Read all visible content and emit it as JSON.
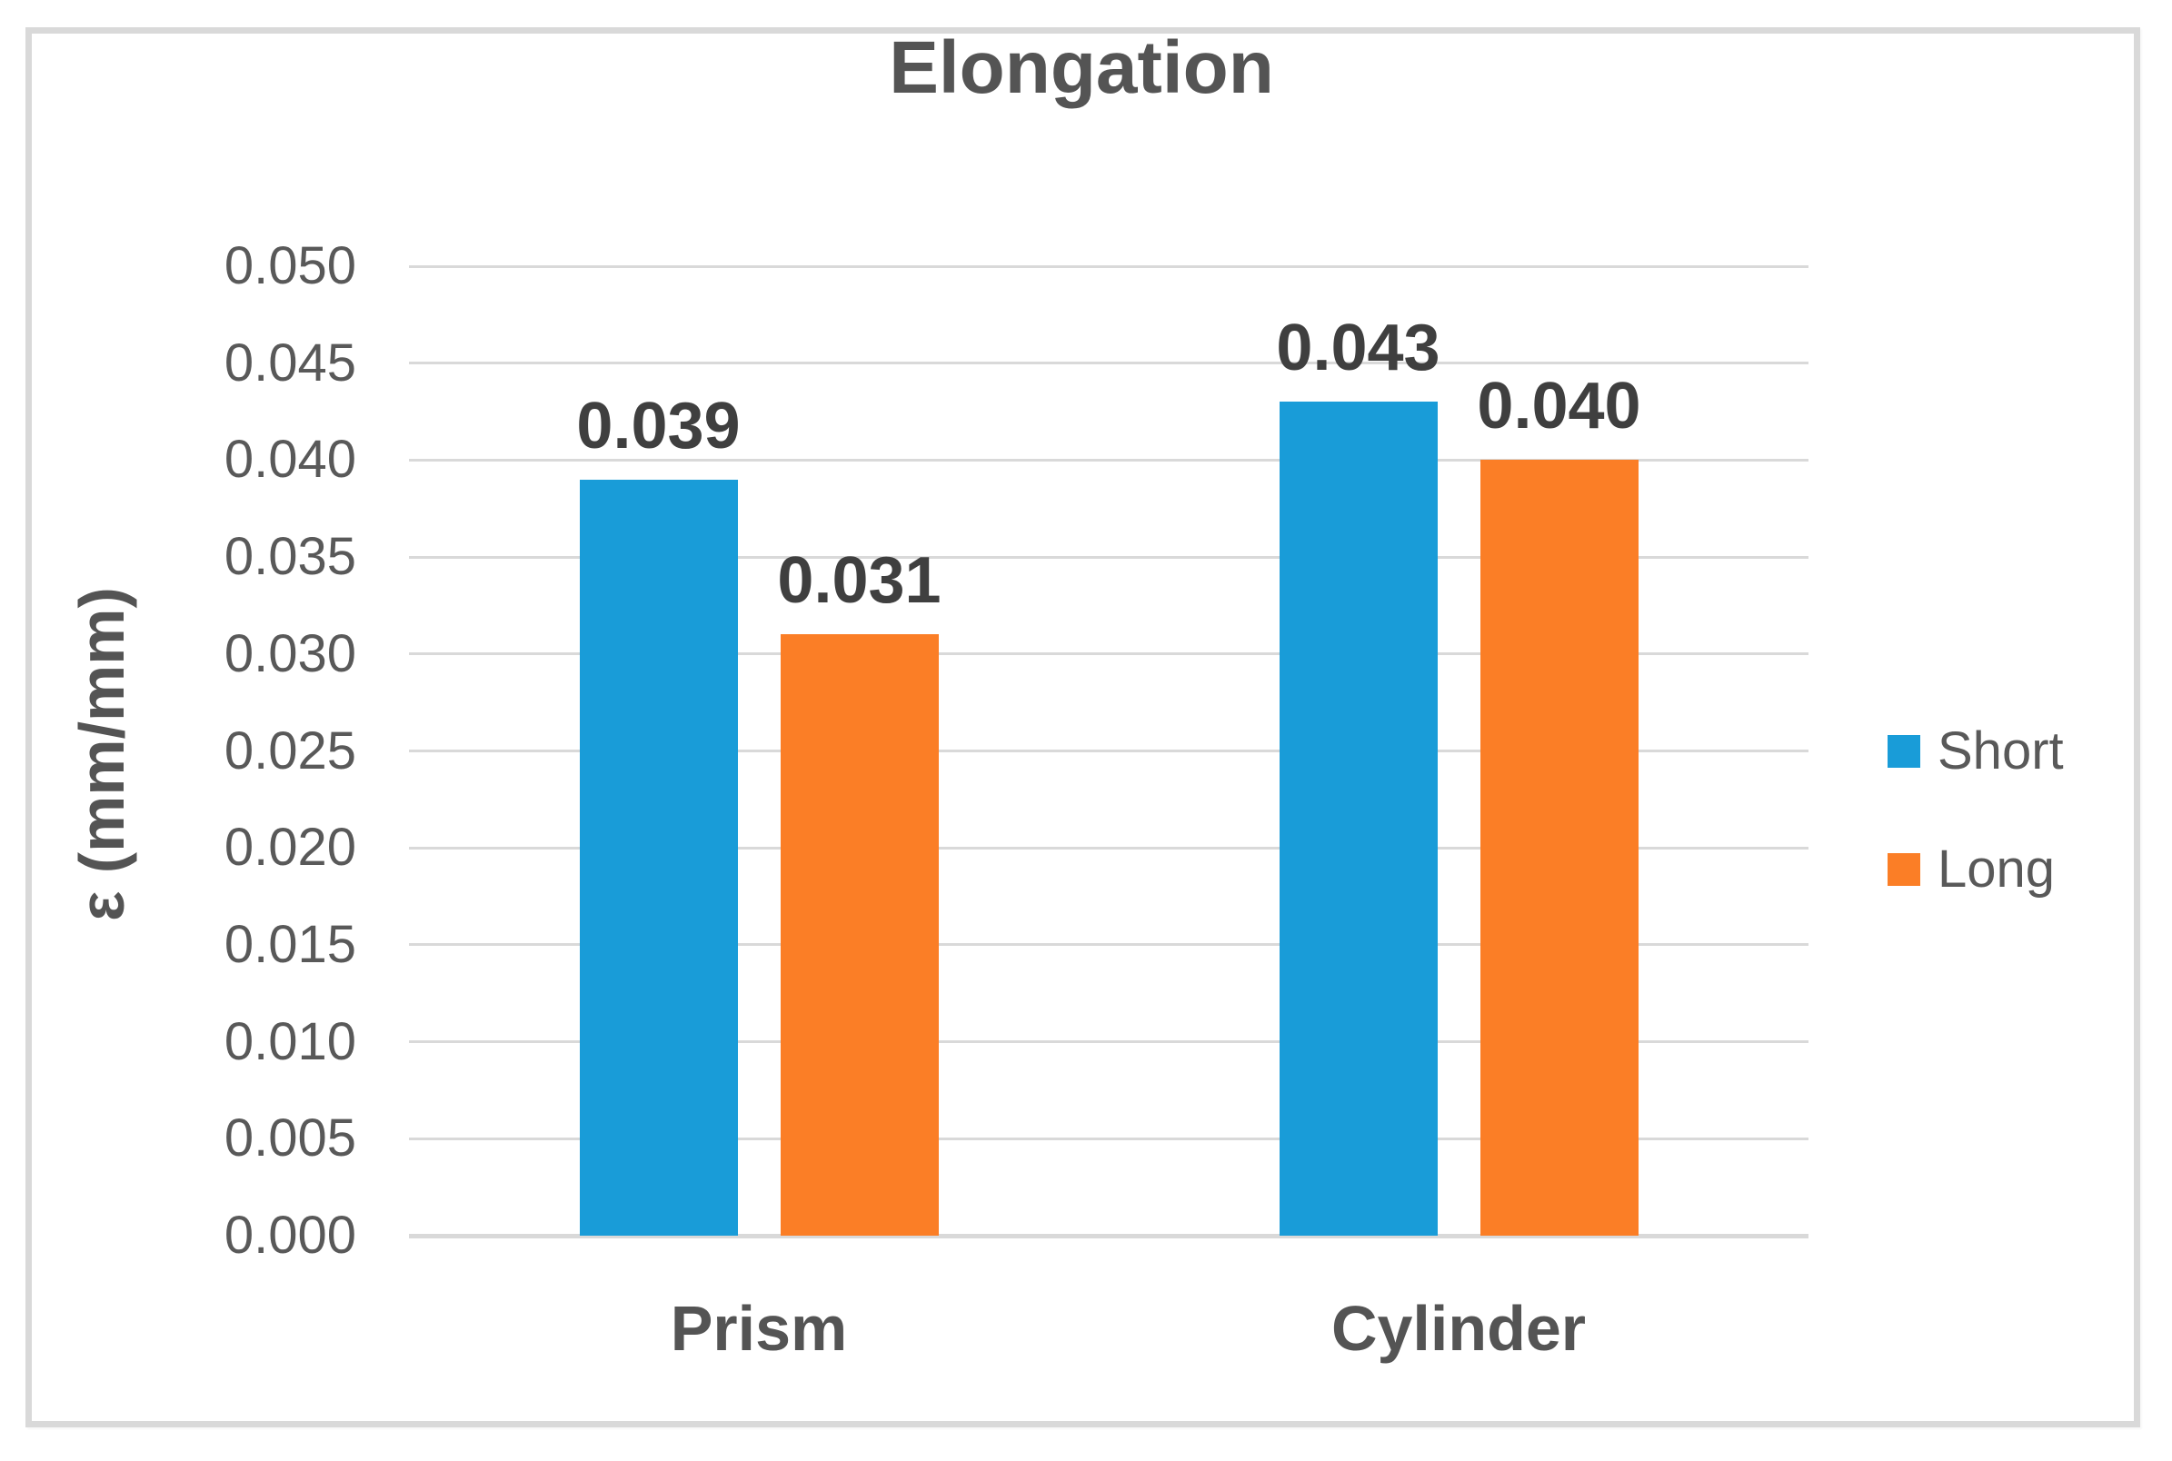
{
  "title": "Elongation",
  "colors": {
    "series_short": "#199cd8",
    "series_long": "#fb7e26",
    "gridline": "#d9d9d9",
    "axis_text": "#595959",
    "data_label_text": "#3f3f3f",
    "title_text": "#545454",
    "border": "#d9d9d9"
  },
  "chart_data": {
    "type": "bar",
    "title": "Elongation",
    "xlabel": "",
    "ylabel": "ε (mm/mm)",
    "categories": [
      "Prism",
      "Cylinder"
    ],
    "series": [
      {
        "name": "Short",
        "color": "#199cd8",
        "values": [
          0.039,
          0.043
        ],
        "labels": [
          "0.039",
          "0.043"
        ]
      },
      {
        "name": "Long",
        "color": "#fb7e26",
        "values": [
          0.031,
          0.04
        ],
        "labels": [
          "0.031",
          "0.040"
        ]
      }
    ],
    "ylim": [
      0,
      0.05
    ],
    "ytick_step": 0.005,
    "ytick_labels": [
      "0.000",
      "0.005",
      "0.010",
      "0.015",
      "0.020",
      "0.025",
      "0.030",
      "0.035",
      "0.040",
      "0.045",
      "0.050"
    ],
    "grid": true,
    "legend_position": "right"
  },
  "legend": {
    "items": [
      {
        "label": "Short",
        "color": "#199cd8"
      },
      {
        "label": "Long",
        "color": "#fb7e26"
      }
    ]
  }
}
